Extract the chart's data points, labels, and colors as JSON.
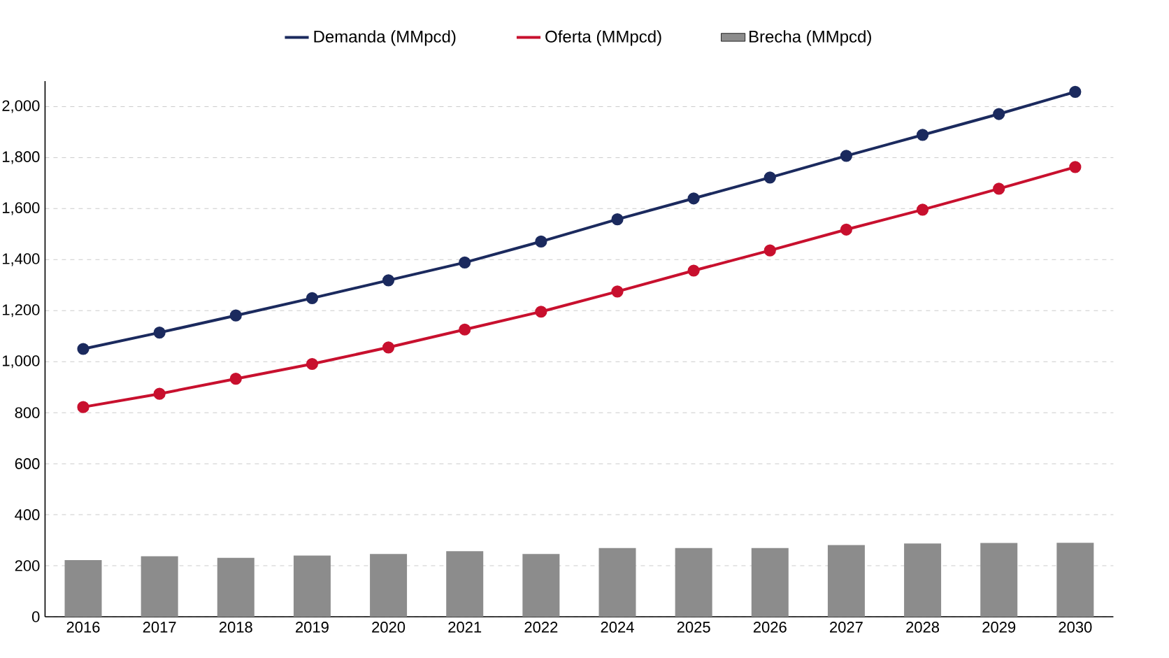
{
  "chart_data": {
    "type": "line",
    "categories": [
      "2016",
      "2017",
      "2018",
      "2019",
      "2020",
      "2021",
      "2022",
      "2024",
      "2025",
      "2026",
      "2027",
      "2028",
      "2029",
      "2030"
    ],
    "series": [
      {
        "name": "Demanda (MMpcd)",
        "color": "#1b2a5e",
        "values": [
          1050,
          1114,
          1181,
          1249,
          1319,
          1389,
          1471,
          1558,
          1640,
          1722,
          1807,
          1889,
          1971,
          2058
        ]
      },
      {
        "name": "Oferta (MMpcd)",
        "color": "#c8102e",
        "values": [
          822,
          874,
          933,
          991,
          1056,
          1126,
          1196,
          1275,
          1357,
          1436,
          1518,
          1596,
          1678,
          1763
        ]
      },
      {
        "name": "Brecha (MMpcd)",
        "type": "bar",
        "color": "#8c8c8c",
        "values": [
          222,
          237,
          231,
          240,
          246,
          257,
          246,
          269,
          269,
          269,
          281,
          287,
          289,
          290
        ]
      }
    ],
    "ylim": [
      0,
      2100
    ],
    "yticks": [
      0,
      200,
      400,
      600,
      800,
      {
        "value": 1000,
        "label": "1,000"
      },
      {
        "value": 1200,
        "label": "1,200"
      },
      {
        "value": 1400,
        "label": "1,400"
      },
      {
        "value": 1600,
        "label": "1,600"
      },
      {
        "value": 1800,
        "label": "1,800"
      },
      {
        "value": 2000,
        "label": "2,000"
      }
    ],
    "grid": "y",
    "legend": "top",
    "marker": "circle",
    "line_style": "solid"
  }
}
